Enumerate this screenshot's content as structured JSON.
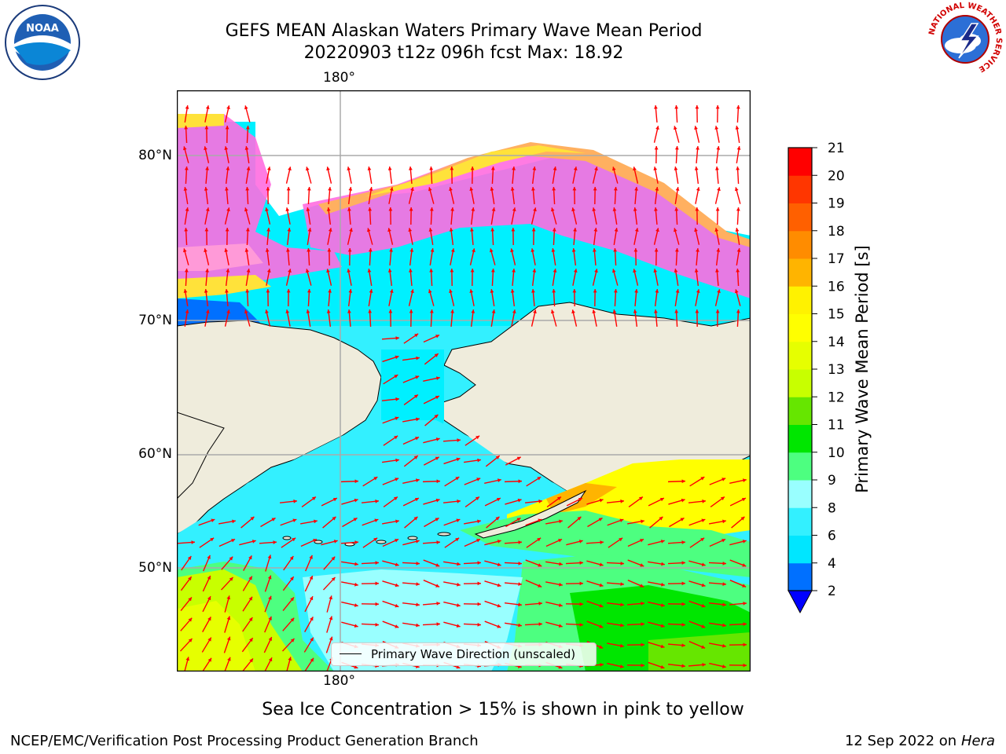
{
  "title": {
    "line1": "GEFS MEAN Alaskan Waters Primary Wave Mean Period",
    "line2": "20220903 t12z 096h fcst   Max: 18.92"
  },
  "axes": {
    "lon_label_top": "180°",
    "lon_label_bottom": "180°",
    "lat_labels": [
      "80°N",
      "70°N",
      "60°N",
      "50°N"
    ]
  },
  "legend": {
    "label": "Primary Wave Direction (unscaled)"
  },
  "colorbar": {
    "title": "Primary Wave Mean Period [s]",
    "ticks": [
      "2",
      "4",
      "6",
      "8",
      "9",
      "10",
      "11",
      "12",
      "13",
      "14",
      "15",
      "16",
      "17",
      "18",
      "19",
      "20",
      "21"
    ],
    "colors": [
      "#0070ff",
      "#00e6ff",
      "#33f0ff",
      "#99ffff",
      "#4dff80",
      "#00e600",
      "#66e600",
      "#c8ff00",
      "#e6ff00",
      "#ffff00",
      "#fff200",
      "#ffb400",
      "#ff8c00",
      "#ff6000",
      "#ff3600",
      "#ff0000"
    ],
    "extend_color": "#0000ff"
  },
  "footer": {
    "ice_note": "Sea Ice Concentration > 15% is shown in pink to yellow",
    "credit": "NCEP/EMC/Verification Post Processing Product Generation Branch",
    "date": "12 Sep 2022 on",
    "machine": "Hera"
  },
  "logos": {
    "noaa": "NOAA",
    "nws_ring": "NATIONAL WEATHER SERVICE"
  },
  "map_colors": {
    "land": "#efecdc",
    "arctic_water": "#00f0ff",
    "ice_pink": "#ff6de0",
    "ice_yellow": "#ffe23a",
    "north_pacific": "#c8ff00",
    "arrow": "#ff0000"
  }
}
